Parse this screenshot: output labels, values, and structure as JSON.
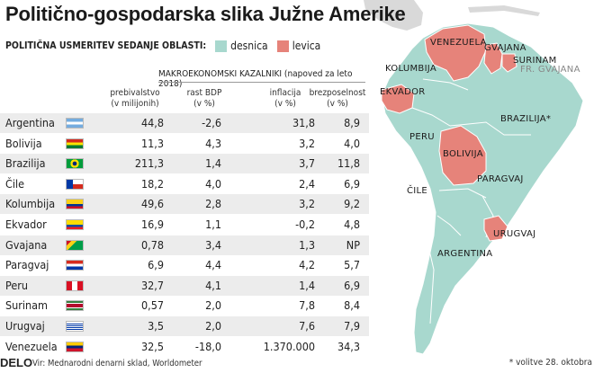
{
  "title": "Politično-gospodarska slika Južne Amerike",
  "legend": {
    "caption": "POLITIČNA USMERITEV SEDANJE OBLASTI:",
    "items": [
      {
        "label": "desnica",
        "color": "#a8d8ce"
      },
      {
        "label": "levica",
        "color": "#e6837a"
      }
    ]
  },
  "table": {
    "group_header": "MAKROEKONOMSKI KAZALNIKI (napoved za leto 2018)",
    "columns": [
      {
        "line1": "prebivalstvo",
        "line2": "(v milijonih)"
      },
      {
        "line1": "rast BDP",
        "line2": "(v %)"
      },
      {
        "line1": "inflacija",
        "line2": "(v %)"
      },
      {
        "line1": "brezposelnost",
        "line2": "(v %)"
      }
    ],
    "rows": [
      {
        "country": "Argentina",
        "values": [
          "44,8",
          "-2,6",
          "31,8",
          "8,9"
        ]
      },
      {
        "country": "Bolivija",
        "values": [
          "11,3",
          "4,3",
          "3,2",
          "4,0"
        ]
      },
      {
        "country": "Brazilija",
        "values": [
          "211,3",
          "1,4",
          "3,7",
          "11,8"
        ]
      },
      {
        "country": "Čile",
        "values": [
          "18,2",
          "4,0",
          "2,4",
          "6,9"
        ]
      },
      {
        "country": "Kolumbija",
        "values": [
          "49,6",
          "2,8",
          "3,2",
          "9,2"
        ]
      },
      {
        "country": "Ekvador",
        "values": [
          "16,9",
          "1,1",
          "-0,2",
          "4,8"
        ]
      },
      {
        "country": "Gvajana",
        "values": [
          "0,78",
          "3,4",
          "1,3",
          "NP"
        ]
      },
      {
        "country": "Paragvaj",
        "values": [
          "6,9",
          "4,4",
          "4,2",
          "5,7"
        ]
      },
      {
        "country": "Peru",
        "values": [
          "32,7",
          "4,1",
          "1,4",
          "6,9"
        ]
      },
      {
        "country": "Surinam",
        "values": [
          "0,57",
          "2,0",
          "7,8",
          "8,4"
        ]
      },
      {
        "country": "Urugvaj",
        "values": [
          "3,5",
          "2,0",
          "7,6",
          "7,9"
        ]
      },
      {
        "country": "Venezuela",
        "values": [
          "32,5",
          "-18,0",
          "1.370.000",
          "34,3"
        ]
      }
    ]
  },
  "map_labels": {
    "venezuela": "VENEZUELA",
    "gvajana": "GVAJANA",
    "surinam": "SURINAM",
    "fr_gvajana": "FR. GVAJANA",
    "kolumbija": "KOLUMBIJA",
    "ekvador": "EKVADOR",
    "brazilija": "BRAZILIJA*",
    "peru": "PERU",
    "bolivija": "BOLIVIJA",
    "paragvaj": "PARAGVAJ",
    "cile": "ČILE",
    "urugvaj": "URUGVAJ",
    "argentina": "ARGENTINA"
  },
  "footer": {
    "brand": "DELO",
    "source": "Vir: Mednarodni denarni sklad, Worldometer",
    "note": "* volitve 28. oktobra"
  },
  "chart_data": {
    "type": "table",
    "title": "Politično-gospodarska slika Južne Amerike",
    "columns": [
      "prebivalstvo (v milijonih)",
      "rast BDP (v %)",
      "inflacija (v %)",
      "brezposelnost (v %)"
    ],
    "categories": [
      "Argentina",
      "Bolivija",
      "Brazilija",
      "Čile",
      "Kolumbija",
      "Ekvador",
      "Gvajana",
      "Paragvaj",
      "Peru",
      "Surinam",
      "Urugvaj",
      "Venezuela"
    ],
    "series": [
      {
        "name": "prebivalstvo (v milijonih)",
        "values": [
          44.8,
          11.3,
          211.3,
          18.2,
          49.6,
          16.9,
          0.78,
          6.9,
          32.7,
          0.57,
          3.5,
          32.5
        ]
      },
      {
        "name": "rast BDP (v %)",
        "values": [
          -2.6,
          4.3,
          1.4,
          4.0,
          2.8,
          1.1,
          3.4,
          4.4,
          4.1,
          2.0,
          2.0,
          -18.0
        ]
      },
      {
        "name": "inflacija (v %)",
        "values": [
          31.8,
          3.2,
          3.7,
          2.4,
          3.2,
          -0.2,
          1.3,
          4.2,
          1.4,
          7.8,
          7.6,
          1370000
        ]
      },
      {
        "name": "brezposelnost (v %)",
        "values": [
          8.9,
          4.0,
          11.8,
          6.9,
          9.2,
          4.8,
          null,
          5.7,
          6.9,
          8.4,
          7.9,
          34.3
        ]
      }
    ],
    "political_orientation": {
      "levica": [
        "Venezuela",
        "Ekvador",
        "Bolivija",
        "Urugvaj",
        "Gvajana",
        "Surinam"
      ],
      "desnica": [
        "Kolumbija",
        "Peru",
        "Brazilija",
        "Paragvaj",
        "Čile",
        "Argentina"
      ]
    }
  }
}
